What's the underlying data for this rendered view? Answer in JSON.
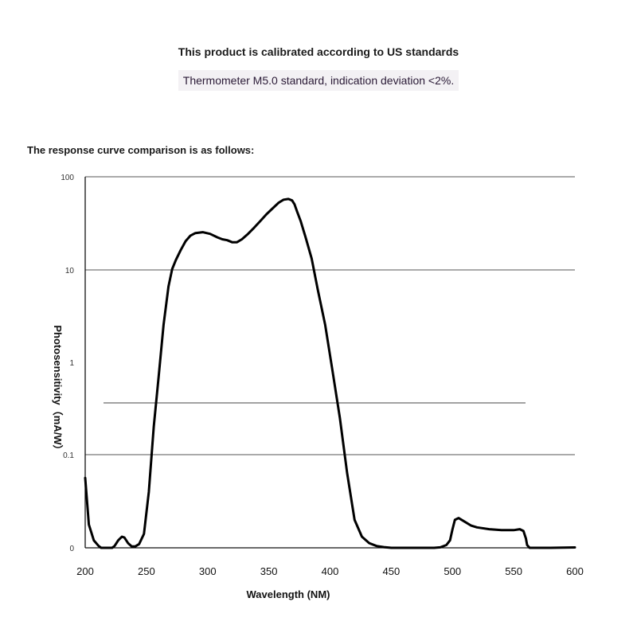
{
  "header": {
    "line1": "This product is calibrated according to US standards",
    "line2": "Thermometer M5.0 standard, indication deviation <2%.",
    "intro": "The response curve comparison is as follows:"
  },
  "chart_data": {
    "type": "line",
    "title": "",
    "xlabel": "Wavelength (NM)",
    "ylabel": "Photosensitivity（mA/W）",
    "xlim": [
      200,
      600
    ],
    "x_ticks": [
      "200",
      "250",
      "300",
      "350",
      "400",
      "450",
      "500",
      "550",
      "600"
    ],
    "y_ticks": [
      "0",
      "0.1",
      "1",
      "10",
      "100"
    ],
    "y_scale": "log (0 at bottom baseline)",
    "grid": "horizontal at 0.1, 10, 100",
    "line_color": "#000000",
    "series": [
      {
        "name": "",
        "x": [
          200,
          203,
          207,
          211,
          213,
          218,
          222,
          224,
          227,
          230,
          232,
          235,
          238,
          241,
          244,
          248,
          252,
          256,
          260,
          264,
          268,
          271,
          274,
          278,
          282,
          286,
          290,
          296,
          302,
          308,
          312,
          316,
          320,
          324,
          328,
          333,
          338,
          343,
          348,
          353,
          358,
          362,
          366,
          369,
          371,
          373,
          376,
          380,
          385,
          390,
          396,
          402,
          408,
          414,
          420,
          426,
          432,
          438,
          444,
          450,
          456,
          462,
          470,
          478,
          485,
          490,
          495,
          498,
          500,
          502,
          505,
          510,
          515,
          520,
          530,
          540,
          550,
          555,
          558,
          560,
          561,
          563,
          567,
          580,
          600
        ],
        "y": [
          0.075,
          0.025,
          0.008,
          0.002,
          0,
          0,
          0,
          0.002,
          0.008,
          0.012,
          0.011,
          0.005,
          0.0015,
          0.0015,
          0.004,
          0.015,
          0.06,
          0.2,
          0.7,
          2.5,
          6.5,
          10,
          12.5,
          16,
          20,
          23,
          24.5,
          25,
          24,
          22,
          21,
          20.5,
          19.5,
          19.5,
          21,
          24,
          28,
          33,
          39,
          45,
          52,
          56,
          57,
          55,
          50,
          42,
          33,
          22,
          13,
          6,
          2.5,
          0.8,
          0.25,
          0.08,
          0.03,
          0.012,
          0.005,
          0.002,
          0.0008,
          0,
          0,
          0,
          0,
          0,
          0,
          0.0005,
          0.003,
          0.008,
          0.02,
          0.03,
          0.032,
          0.028,
          0.024,
          0.022,
          0.02,
          0.019,
          0.019,
          0.02,
          0.018,
          0.01,
          0.003,
          0,
          0,
          0,
          0.0004
        ]
      }
    ]
  }
}
